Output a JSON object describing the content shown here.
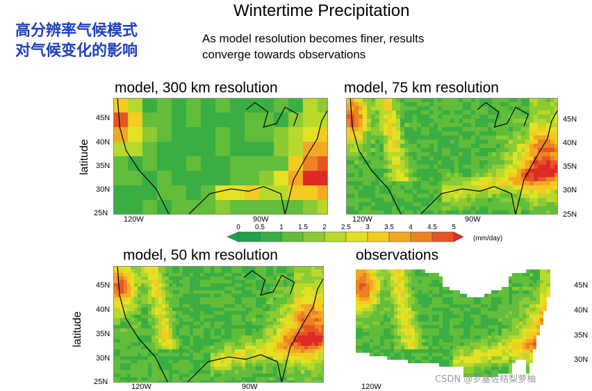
{
  "cn_title": [
    "高分辨率气候模式",
    "对气候变化的影响"
  ],
  "main_title": "Wintertime Precipitation",
  "subtitle": [
    "As model resolution becomes finer, results",
    "converge towards observations"
  ],
  "panels": [
    {
      "title": "model, 300 km resolution"
    },
    {
      "title": "model, 75 km resolution"
    },
    {
      "title": "model, 50 km resolution"
    },
    {
      "title": "observations"
    }
  ],
  "axis": {
    "latitude_label": "latitude",
    "lat_ticks": [
      "45N",
      "40N",
      "35N",
      "30N",
      "25N"
    ],
    "lon_ticks": [
      "120W",
      "90W"
    ]
  },
  "colorbar": {
    "ticks": [
      "0",
      "0.5",
      "1",
      "1.5",
      "2",
      "2.5",
      "3",
      "3.5",
      "4",
      "4.5",
      "5"
    ],
    "unit": "(mm/day)",
    "colors": [
      "#1fa24a",
      "#3aae43",
      "#62bd3b",
      "#8ccb33",
      "#b8d92c",
      "#e2e223",
      "#f3cb21",
      "#f2a823",
      "#ec8224",
      "#e35624",
      "#dd2a25"
    ]
  },
  "watermark": "CSDN @罗塞佐桔梨萝柚"
}
